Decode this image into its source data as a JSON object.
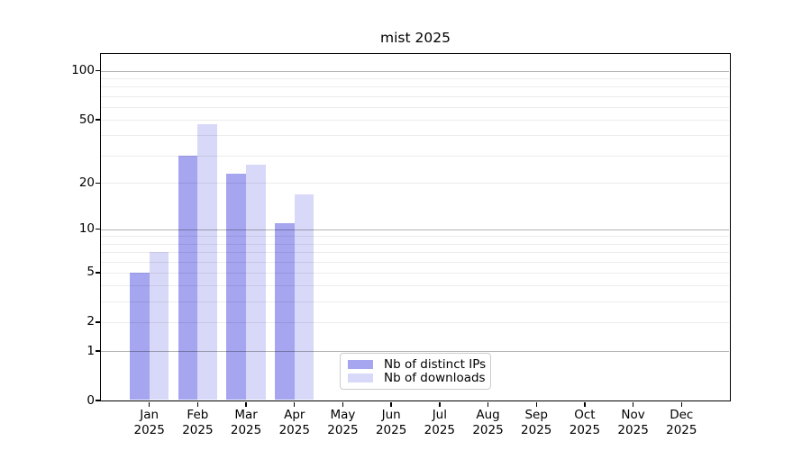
{
  "title": "mist 2025",
  "chart_data": {
    "type": "bar",
    "title": "mist 2025",
    "categories": [
      "Jan 2025",
      "Feb 2025",
      "Mar 2025",
      "Apr 2025",
      "May 2025",
      "Jun 2025",
      "Jul 2025",
      "Aug 2025",
      "Sep 2025",
      "Oct 2025",
      "Nov 2025",
      "Dec 2025"
    ],
    "series": [
      {
        "name": "Nb of distinct IPs",
        "color": "#a5a5f0",
        "values": [
          5,
          30,
          23,
          11,
          0,
          0,
          0,
          0,
          0,
          0,
          0,
          0
        ]
      },
      {
        "name": "Nb of downloads",
        "color": "#d8d8f8",
        "values": [
          7,
          47,
          26,
          17,
          0,
          0,
          0,
          0,
          0,
          0,
          0,
          0
        ]
      }
    ],
    "xlabel": "",
    "ylabel": "",
    "yscale": "log1p",
    "ylim": [
      0,
      127
    ],
    "ytick_values": [
      0,
      1,
      2,
      5,
      10,
      20,
      50,
      100
    ],
    "ytick_labels": [
      "0",
      "1",
      "2",
      "5",
      "10",
      "20",
      "50",
      "100"
    ],
    "major_gridline_values": [
      1,
      10,
      100
    ],
    "minor_gridline_values": [
      2,
      3,
      4,
      5,
      6,
      7,
      8,
      9,
      20,
      30,
      40,
      50,
      60,
      70,
      80,
      90
    ],
    "grid": true,
    "legend_position": "lower center"
  },
  "colors": {
    "background": "#ffffff",
    "axis": "#000000",
    "major_grid": "#b0b0b0",
    "minor_grid": "#e9e9e9",
    "legend_border": "#cccccc",
    "text": "#000000"
  }
}
